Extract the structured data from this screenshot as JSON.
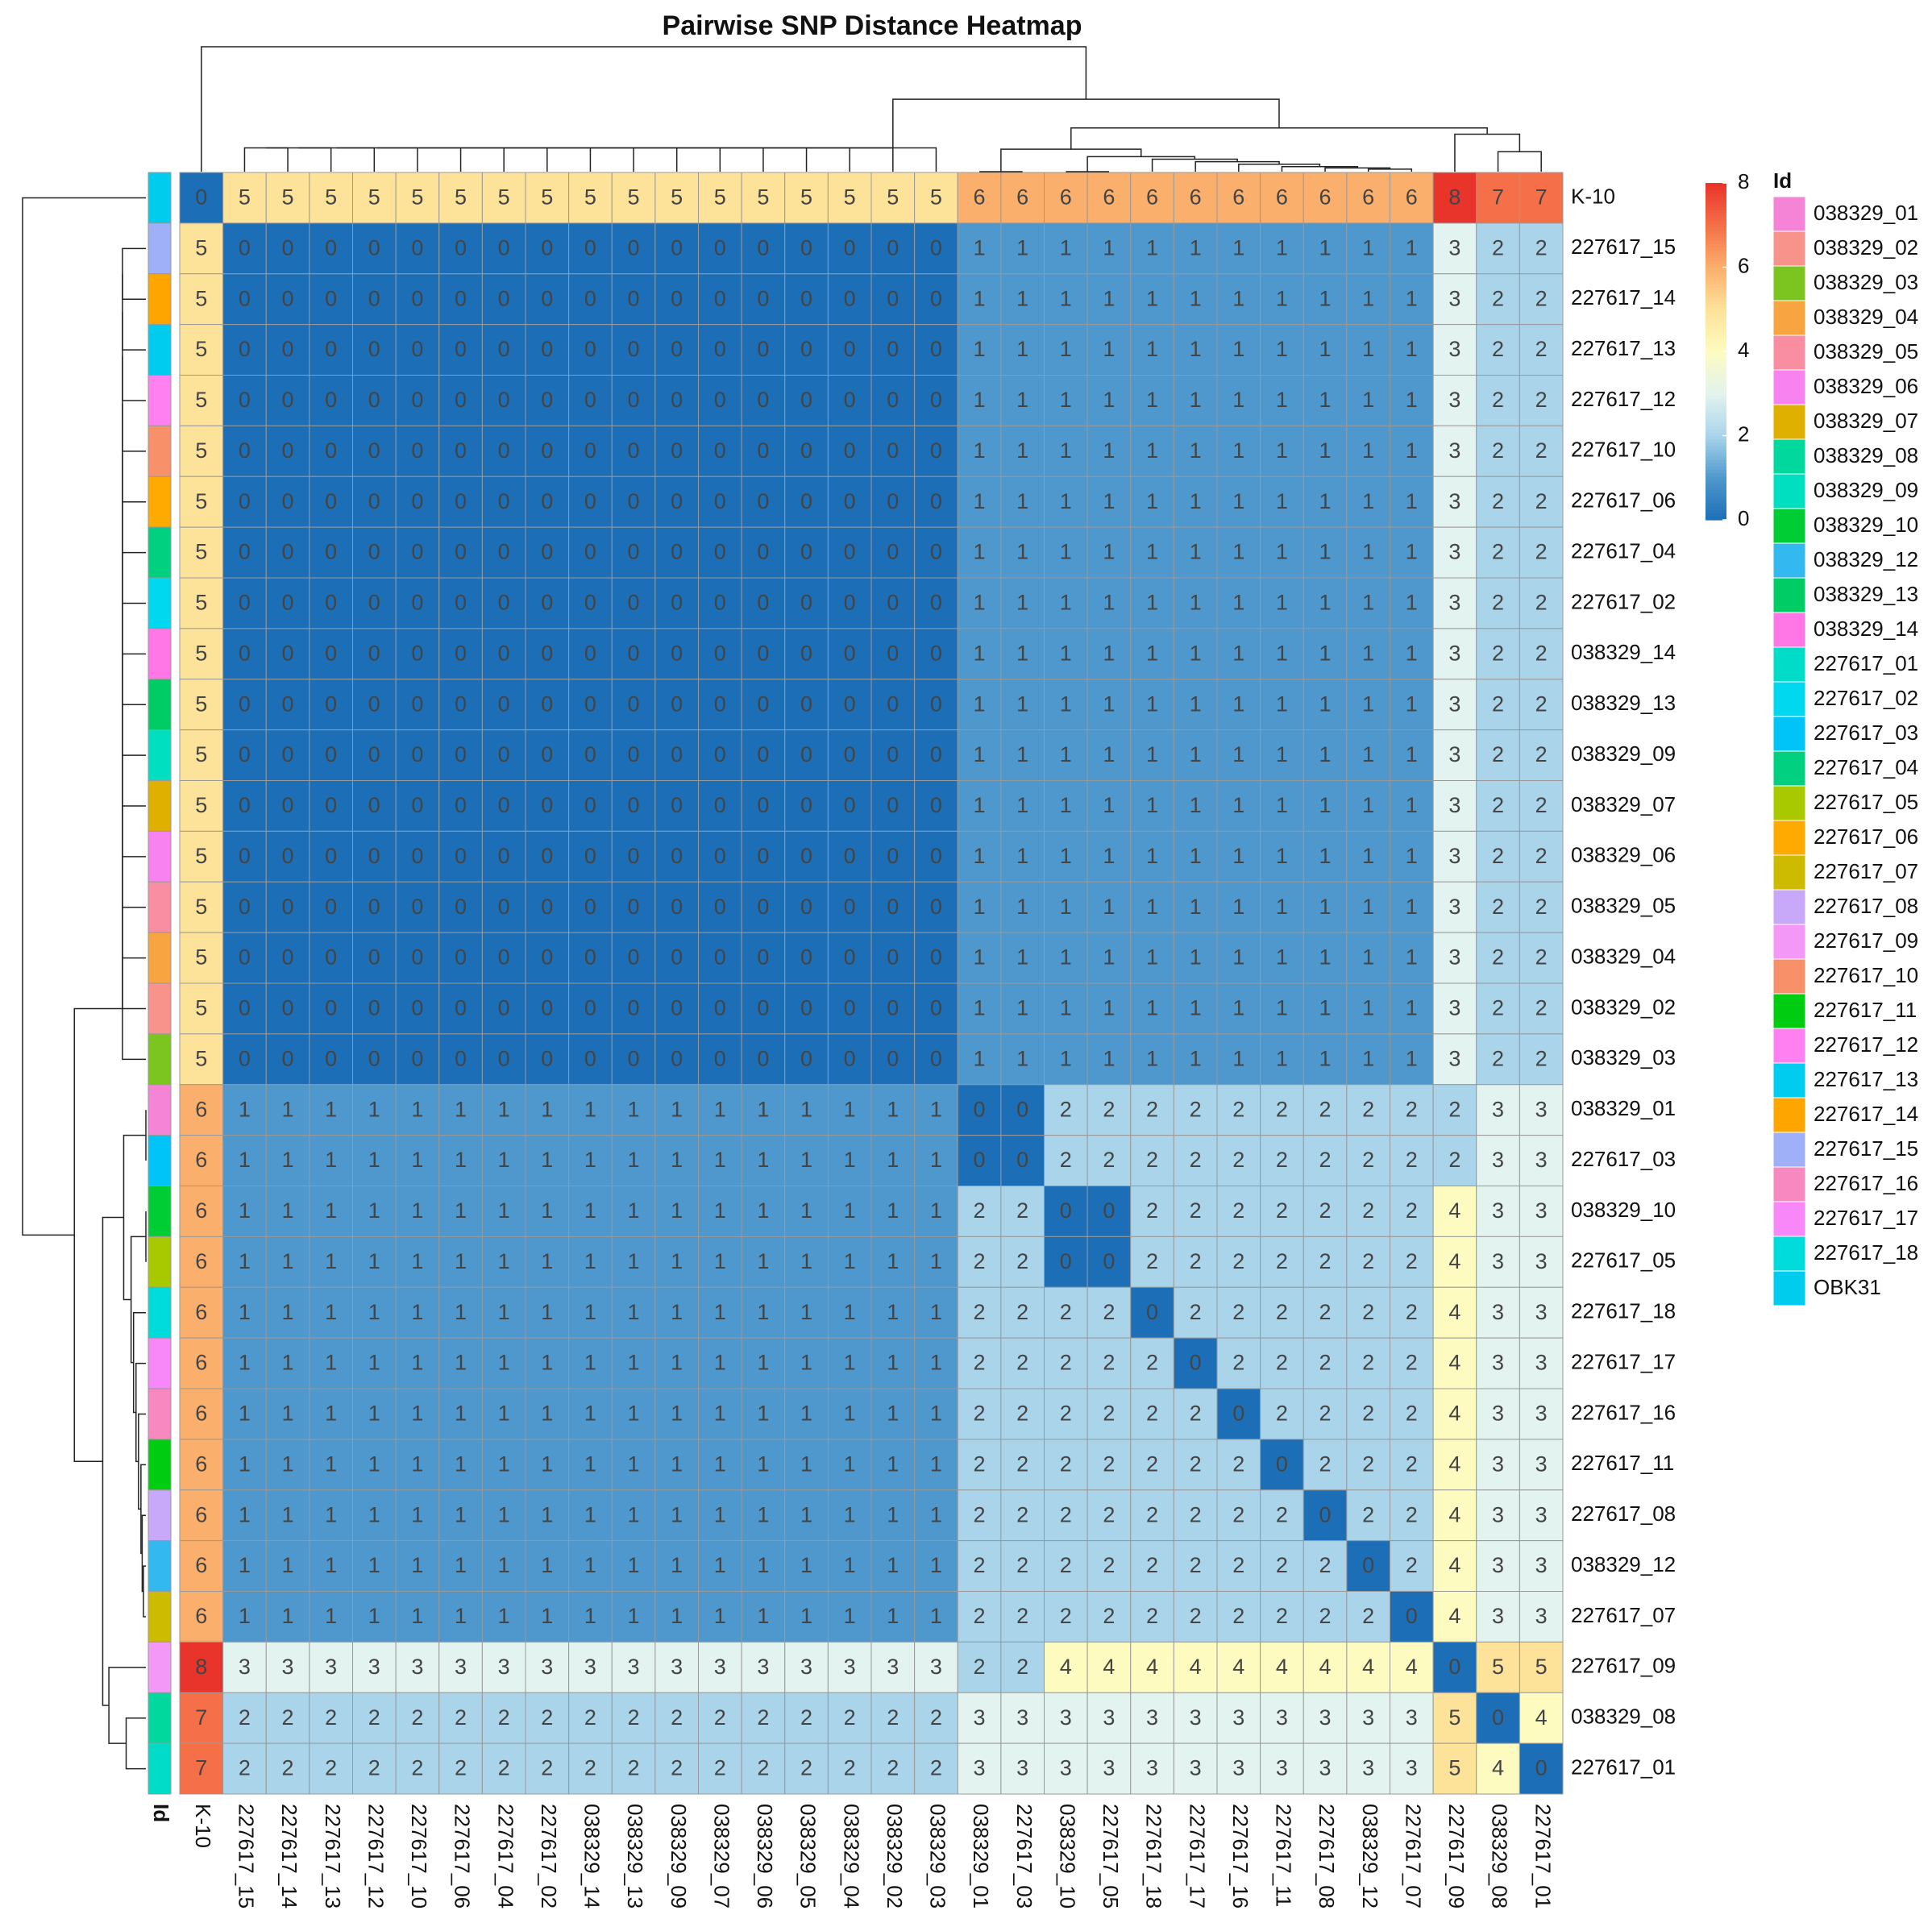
{
  "chart_data": {
    "type": "heatmap",
    "title": "Pairwise SNP Distance Heatmap",
    "rows": [
      "K-10",
      "227617_15",
      "227617_14",
      "227617_13",
      "227617_12",
      "227617_10",
      "227617_06",
      "227617_04",
      "227617_02",
      "038329_14",
      "038329_13",
      "038329_09",
      "038329_07",
      "038329_06",
      "038329_05",
      "038329_04",
      "038329_02",
      "038329_03",
      "038329_01",
      "227617_03",
      "038329_10",
      "227617_05",
      "227617_18",
      "227617_17",
      "227617_16",
      "227617_11",
      "227617_08",
      "038329_12",
      "227617_07",
      "227617_09",
      "038329_08",
      "227617_01"
    ],
    "columns": [
      "K-10",
      "227617_15",
      "227617_14",
      "227617_13",
      "227617_12",
      "227617_10",
      "227617_06",
      "227617_04",
      "227617_02",
      "038329_14",
      "038329_13",
      "038329_09",
      "038329_07",
      "038329_06",
      "038329_05",
      "038329_04",
      "038329_02",
      "038329_03",
      "038329_01",
      "227617_03",
      "038329_10",
      "227617_05",
      "227617_18",
      "227617_17",
      "227617_16",
      "227617_11",
      "227617_08",
      "038329_12",
      "227617_07",
      "227617_09",
      "038329_08",
      "227617_01"
    ],
    "values": [
      [
        0,
        5,
        5,
        5,
        5,
        5,
        5,
        5,
        5,
        5,
        5,
        5,
        5,
        5,
        5,
        5,
        5,
        5,
        6,
        6,
        6,
        6,
        6,
        6,
        6,
        6,
        6,
        6,
        6,
        8,
        7,
        7
      ],
      [
        5,
        0,
        0,
        0,
        0,
        0,
        0,
        0,
        0,
        0,
        0,
        0,
        0,
        0,
        0,
        0,
        0,
        0,
        1,
        1,
        1,
        1,
        1,
        1,
        1,
        1,
        1,
        1,
        1,
        3,
        2,
        2
      ],
      [
        5,
        0,
        0,
        0,
        0,
        0,
        0,
        0,
        0,
        0,
        0,
        0,
        0,
        0,
        0,
        0,
        0,
        0,
        1,
        1,
        1,
        1,
        1,
        1,
        1,
        1,
        1,
        1,
        1,
        3,
        2,
        2
      ],
      [
        5,
        0,
        0,
        0,
        0,
        0,
        0,
        0,
        0,
        0,
        0,
        0,
        0,
        0,
        0,
        0,
        0,
        0,
        1,
        1,
        1,
        1,
        1,
        1,
        1,
        1,
        1,
        1,
        1,
        3,
        2,
        2
      ],
      [
        5,
        0,
        0,
        0,
        0,
        0,
        0,
        0,
        0,
        0,
        0,
        0,
        0,
        0,
        0,
        0,
        0,
        0,
        1,
        1,
        1,
        1,
        1,
        1,
        1,
        1,
        1,
        1,
        1,
        3,
        2,
        2
      ],
      [
        5,
        0,
        0,
        0,
        0,
        0,
        0,
        0,
        0,
        0,
        0,
        0,
        0,
        0,
        0,
        0,
        0,
        0,
        1,
        1,
        1,
        1,
        1,
        1,
        1,
        1,
        1,
        1,
        1,
        3,
        2,
        2
      ],
      [
        5,
        0,
        0,
        0,
        0,
        0,
        0,
        0,
        0,
        0,
        0,
        0,
        0,
        0,
        0,
        0,
        0,
        0,
        1,
        1,
        1,
        1,
        1,
        1,
        1,
        1,
        1,
        1,
        1,
        3,
        2,
        2
      ],
      [
        5,
        0,
        0,
        0,
        0,
        0,
        0,
        0,
        0,
        0,
        0,
        0,
        0,
        0,
        0,
        0,
        0,
        0,
        1,
        1,
        1,
        1,
        1,
        1,
        1,
        1,
        1,
        1,
        1,
        3,
        2,
        2
      ],
      [
        5,
        0,
        0,
        0,
        0,
        0,
        0,
        0,
        0,
        0,
        0,
        0,
        0,
        0,
        0,
        0,
        0,
        0,
        1,
        1,
        1,
        1,
        1,
        1,
        1,
        1,
        1,
        1,
        1,
        3,
        2,
        2
      ],
      [
        5,
        0,
        0,
        0,
        0,
        0,
        0,
        0,
        0,
        0,
        0,
        0,
        0,
        0,
        0,
        0,
        0,
        0,
        1,
        1,
        1,
        1,
        1,
        1,
        1,
        1,
        1,
        1,
        1,
        3,
        2,
        2
      ],
      [
        5,
        0,
        0,
        0,
        0,
        0,
        0,
        0,
        0,
        0,
        0,
        0,
        0,
        0,
        0,
        0,
        0,
        0,
        1,
        1,
        1,
        1,
        1,
        1,
        1,
        1,
        1,
        1,
        1,
        3,
        2,
        2
      ],
      [
        5,
        0,
        0,
        0,
        0,
        0,
        0,
        0,
        0,
        0,
        0,
        0,
        0,
        0,
        0,
        0,
        0,
        0,
        1,
        1,
        1,
        1,
        1,
        1,
        1,
        1,
        1,
        1,
        1,
        3,
        2,
        2
      ],
      [
        5,
        0,
        0,
        0,
        0,
        0,
        0,
        0,
        0,
        0,
        0,
        0,
        0,
        0,
        0,
        0,
        0,
        0,
        1,
        1,
        1,
        1,
        1,
        1,
        1,
        1,
        1,
        1,
        1,
        3,
        2,
        2
      ],
      [
        5,
        0,
        0,
        0,
        0,
        0,
        0,
        0,
        0,
        0,
        0,
        0,
        0,
        0,
        0,
        0,
        0,
        0,
        1,
        1,
        1,
        1,
        1,
        1,
        1,
        1,
        1,
        1,
        1,
        3,
        2,
        2
      ],
      [
        5,
        0,
        0,
        0,
        0,
        0,
        0,
        0,
        0,
        0,
        0,
        0,
        0,
        0,
        0,
        0,
        0,
        0,
        1,
        1,
        1,
        1,
        1,
        1,
        1,
        1,
        1,
        1,
        1,
        3,
        2,
        2
      ],
      [
        5,
        0,
        0,
        0,
        0,
        0,
        0,
        0,
        0,
        0,
        0,
        0,
        0,
        0,
        0,
        0,
        0,
        0,
        1,
        1,
        1,
        1,
        1,
        1,
        1,
        1,
        1,
        1,
        1,
        3,
        2,
        2
      ],
      [
        5,
        0,
        0,
        0,
        0,
        0,
        0,
        0,
        0,
        0,
        0,
        0,
        0,
        0,
        0,
        0,
        0,
        0,
        1,
        1,
        1,
        1,
        1,
        1,
        1,
        1,
        1,
        1,
        1,
        3,
        2,
        2
      ],
      [
        5,
        0,
        0,
        0,
        0,
        0,
        0,
        0,
        0,
        0,
        0,
        0,
        0,
        0,
        0,
        0,
        0,
        0,
        1,
        1,
        1,
        1,
        1,
        1,
        1,
        1,
        1,
        1,
        1,
        3,
        2,
        2
      ],
      [
        6,
        1,
        1,
        1,
        1,
        1,
        1,
        1,
        1,
        1,
        1,
        1,
        1,
        1,
        1,
        1,
        1,
        1,
        0,
        0,
        2,
        2,
        2,
        2,
        2,
        2,
        2,
        2,
        2,
        2,
        3,
        3
      ],
      [
        6,
        1,
        1,
        1,
        1,
        1,
        1,
        1,
        1,
        1,
        1,
        1,
        1,
        1,
        1,
        1,
        1,
        1,
        0,
        0,
        2,
        2,
        2,
        2,
        2,
        2,
        2,
        2,
        2,
        2,
        3,
        3
      ],
      [
        6,
        1,
        1,
        1,
        1,
        1,
        1,
        1,
        1,
        1,
        1,
        1,
        1,
        1,
        1,
        1,
        1,
        1,
        2,
        2,
        0,
        0,
        2,
        2,
        2,
        2,
        2,
        2,
        2,
        4,
        3,
        3
      ],
      [
        6,
        1,
        1,
        1,
        1,
        1,
        1,
        1,
        1,
        1,
        1,
        1,
        1,
        1,
        1,
        1,
        1,
        1,
        2,
        2,
        0,
        0,
        2,
        2,
        2,
        2,
        2,
        2,
        2,
        4,
        3,
        3
      ],
      [
        6,
        1,
        1,
        1,
        1,
        1,
        1,
        1,
        1,
        1,
        1,
        1,
        1,
        1,
        1,
        1,
        1,
        1,
        2,
        2,
        2,
        2,
        0,
        2,
        2,
        2,
        2,
        2,
        2,
        4,
        3,
        3
      ],
      [
        6,
        1,
        1,
        1,
        1,
        1,
        1,
        1,
        1,
        1,
        1,
        1,
        1,
        1,
        1,
        1,
        1,
        1,
        2,
        2,
        2,
        2,
        2,
        0,
        2,
        2,
        2,
        2,
        2,
        4,
        3,
        3
      ],
      [
        6,
        1,
        1,
        1,
        1,
        1,
        1,
        1,
        1,
        1,
        1,
        1,
        1,
        1,
        1,
        1,
        1,
        1,
        2,
        2,
        2,
        2,
        2,
        2,
        0,
        2,
        2,
        2,
        2,
        4,
        3,
        3
      ],
      [
        6,
        1,
        1,
        1,
        1,
        1,
        1,
        1,
        1,
        1,
        1,
        1,
        1,
        1,
        1,
        1,
        1,
        1,
        2,
        2,
        2,
        2,
        2,
        2,
        2,
        0,
        2,
        2,
        2,
        4,
        3,
        3
      ],
      [
        6,
        1,
        1,
        1,
        1,
        1,
        1,
        1,
        1,
        1,
        1,
        1,
        1,
        1,
        1,
        1,
        1,
        1,
        2,
        2,
        2,
        2,
        2,
        2,
        2,
        2,
        0,
        2,
        2,
        4,
        3,
        3
      ],
      [
        6,
        1,
        1,
        1,
        1,
        1,
        1,
        1,
        1,
        1,
        1,
        1,
        1,
        1,
        1,
        1,
        1,
        1,
        2,
        2,
        2,
        2,
        2,
        2,
        2,
        2,
        2,
        0,
        2,
        4,
        3,
        3
      ],
      [
        6,
        1,
        1,
        1,
        1,
        1,
        1,
        1,
        1,
        1,
        1,
        1,
        1,
        1,
        1,
        1,
        1,
        1,
        2,
        2,
        2,
        2,
        2,
        2,
        2,
        2,
        2,
        2,
        0,
        4,
        3,
        3
      ],
      [
        8,
        3,
        3,
        3,
        3,
        3,
        3,
        3,
        3,
        3,
        3,
        3,
        3,
        3,
        3,
        3,
        3,
        3,
        2,
        2,
        4,
        4,
        4,
        4,
        4,
        4,
        4,
        4,
        4,
        0,
        5,
        5
      ],
      [
        7,
        2,
        2,
        2,
        2,
        2,
        2,
        2,
        2,
        2,
        2,
        2,
        2,
        2,
        2,
        2,
        2,
        2,
        3,
        3,
        3,
        3,
        3,
        3,
        3,
        3,
        3,
        3,
        3,
        5,
        0,
        4
      ],
      [
        7,
        2,
        2,
        2,
        2,
        2,
        2,
        2,
        2,
        2,
        2,
        2,
        2,
        2,
        2,
        2,
        2,
        2,
        3,
        3,
        3,
        3,
        3,
        3,
        3,
        3,
        3,
        3,
        3,
        5,
        4,
        0
      ]
    ],
    "zlim": [
      0,
      8
    ],
    "zticks": [
      0,
      2,
      4,
      6,
      8
    ],
    "colorscale": [
      "#1c6fb6",
      "#4f98cd",
      "#a9d4ea",
      "#e3f3ef",
      "#fdfbc0",
      "#fde29a",
      "#fbaf6c",
      "#f57048",
      "#e8342a"
    ],
    "annotation_label": "Id",
    "legend_title": "Id",
    "legend_items": [
      {
        "name": "038329_01",
        "color": "#f584d6"
      },
      {
        "name": "038329_02",
        "color": "#f7938a"
      },
      {
        "name": "038329_03",
        "color": "#7cc520"
      },
      {
        "name": "038329_04",
        "color": "#f7a441"
      },
      {
        "name": "038329_05",
        "color": "#f98ea2"
      },
      {
        "name": "038329_06",
        "color": "#f883f0"
      },
      {
        "name": "038329_07",
        "color": "#e0b000"
      },
      {
        "name": "038329_08",
        "color": "#00d89e"
      },
      {
        "name": "038329_09",
        "color": "#00e0c0"
      },
      {
        "name": "038329_10",
        "color": "#00cc33"
      },
      {
        "name": "038329_12",
        "color": "#33b8f0"
      },
      {
        "name": "038329_13",
        "color": "#00cc66"
      },
      {
        "name": "038329_14",
        "color": "#ff77e6"
      },
      {
        "name": "227617_01",
        "color": "#00dcc8"
      },
      {
        "name": "227617_02",
        "color": "#00d8f0"
      },
      {
        "name": "227617_03",
        "color": "#00c4f8"
      },
      {
        "name": "227617_04",
        "color": "#00d080"
      },
      {
        "name": "227617_05",
        "color": "#a8c800"
      },
      {
        "name": "227617_06",
        "color": "#ffaa00"
      },
      {
        "name": "227617_07",
        "color": "#ccbb00"
      },
      {
        "name": "227617_08",
        "color": "#c8a8f8"
      },
      {
        "name": "227617_09",
        "color": "#f498f8"
      },
      {
        "name": "227617_10",
        "color": "#f8906a"
      },
      {
        "name": "227617_11",
        "color": "#00cc11"
      },
      {
        "name": "227617_12",
        "color": "#ff80f0"
      },
      {
        "name": "227617_13",
        "color": "#00ccf0"
      },
      {
        "name": "227617_14",
        "color": "#ffa500"
      },
      {
        "name": "227617_15",
        "color": "#a0b0f8"
      },
      {
        "name": "227617_16",
        "color": "#f888c0"
      },
      {
        "name": "227617_17",
        "color": "#f888f8"
      },
      {
        "name": "227617_18",
        "color": "#00dcdc"
      },
      {
        "name": "OBK31",
        "color": "#00ccee"
      }
    ],
    "row_annotation_colors": [
      "#00ccee",
      "#a0b0f8",
      "#ffa500",
      "#00ccf0",
      "#ff80f0",
      "#f8906a",
      "#ffaa00",
      "#00d080",
      "#00d8f0",
      "#ff77e6",
      "#00cc66",
      "#00e0c0",
      "#e0b000",
      "#f883f0",
      "#f98ea2",
      "#f7a441",
      "#f7938a",
      "#7cc520",
      "#f584d6",
      "#00c4f8",
      "#00cc33",
      "#a8c800",
      "#00dcdc",
      "#f888f8",
      "#f888c0",
      "#00cc11",
      "#c8a8f8",
      "#33b8f0",
      "#ccbb00",
      "#f498f8",
      "#00d89e",
      "#00dcc8"
    ]
  }
}
